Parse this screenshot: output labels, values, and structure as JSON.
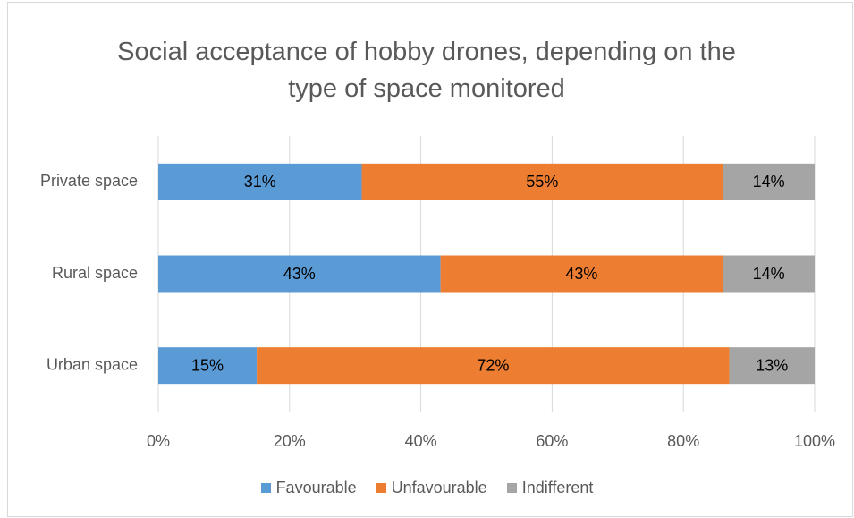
{
  "chart_data": {
    "type": "bar",
    "orientation": "horizontal",
    "stacked": true,
    "title": "Social acceptance of hobby drones, depending on the type of space monitored",
    "categories": [
      "Private space",
      "Rural space",
      "Urban space"
    ],
    "series": [
      {
        "name": "Favourable",
        "color": "#5b9bd5",
        "values": [
          31,
          43,
          15
        ],
        "value_labels": [
          "31%",
          "43%",
          "15%"
        ]
      },
      {
        "name": "Unfavourable",
        "color": "#ed7d31",
        "values": [
          55,
          43,
          72
        ],
        "value_labels": [
          "55%",
          "43%",
          "72%"
        ]
      },
      {
        "name": "Indifferent",
        "color": "#a5a5a5",
        "values": [
          14,
          14,
          13
        ],
        "value_labels": [
          "14%",
          "14%",
          "13%"
        ]
      }
    ],
    "xlim": [
      0,
      100
    ],
    "xticks": [
      {
        "value": 0,
        "label": "0%"
      },
      {
        "value": 20,
        "label": "20%"
      },
      {
        "value": 40,
        "label": "40%"
      },
      {
        "value": 60,
        "label": "60%"
      },
      {
        "value": 80,
        "label": "80%"
      },
      {
        "value": 100,
        "label": "100%"
      }
    ],
    "grid": true,
    "legend": "bottom"
  }
}
